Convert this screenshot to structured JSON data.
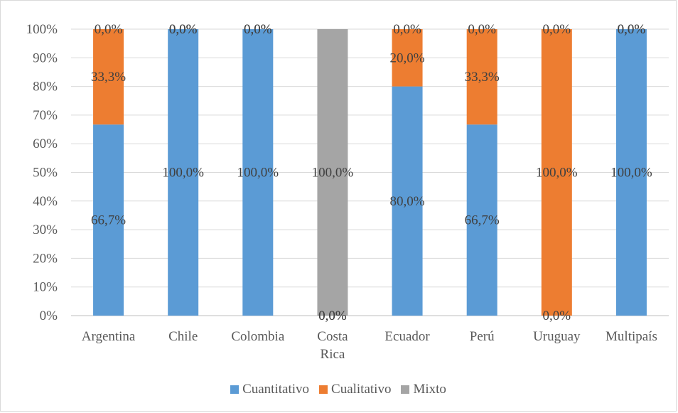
{
  "chart_data": {
    "type": "bar",
    "stacked": true,
    "percent": true,
    "categories": [
      "Argentina",
      "Chile",
      "Colombia",
      "Costa Rica",
      "Ecuador",
      "Perú",
      "Uruguay",
      "Multipaís"
    ],
    "series": [
      {
        "name": "Cuantitativo",
        "color": "#5b9bd5",
        "values": [
          66.7,
          100,
          100,
          0,
          80,
          66.7,
          0,
          100
        ],
        "labels": [
          "66,7%",
          "100,0%",
          "100,0%",
          "0,0%",
          "80,0%",
          "66,7%",
          "0,0%",
          "100,0%"
        ]
      },
      {
        "name": "Cualitativo",
        "color": "#ed7d31",
        "values": [
          33.3,
          0,
          0,
          0,
          20,
          33.3,
          100,
          0
        ],
        "labels": [
          "33,3%",
          "0,0%",
          "0,0%",
          "0,0%",
          "20,0%",
          "33,3%",
          "100,0%",
          "0,0%"
        ]
      },
      {
        "name": "Mixto",
        "color": "#a5a5a5",
        "values": [
          0,
          0,
          0,
          100,
          0,
          0,
          0,
          0
        ],
        "labels": [
          "0,0%",
          "0,0%",
          "0,0%",
          "100,0%",
          "0,0%",
          "0,0%",
          "0,0%",
          "0,0%"
        ]
      }
    ],
    "y_ticks": [
      "0%",
      "10%",
      "20%",
      "30%",
      "40%",
      "50%",
      "60%",
      "70%",
      "80%",
      "90%",
      "100%"
    ],
    "ylim": [
      0,
      100
    ],
    "grid": true,
    "legend_position": "bottom"
  }
}
